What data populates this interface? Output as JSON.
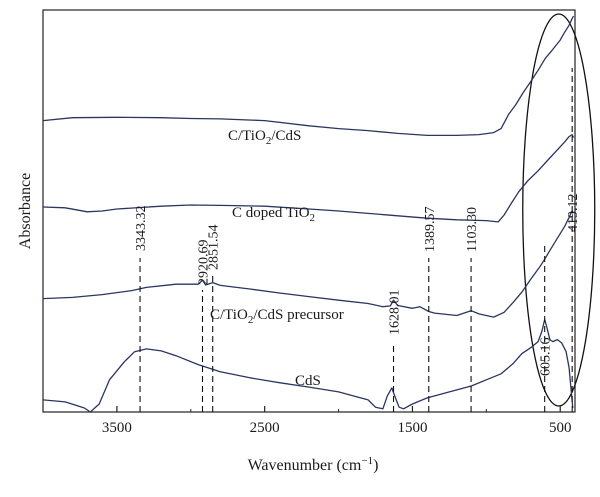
{
  "chart_data": {
    "type": "line",
    "xlabel": "Wavenumber",
    "xlabel_unit": "(cm",
    "xlabel_unit_sup": "−1",
    "xlabel_unit_close": ")",
    "ylabel": "Absorbance",
    "x_reversed": true,
    "xlim": [
      4000,
      400
    ],
    "xticks": [
      3500,
      2500,
      1500,
      500
    ],
    "xtick_labels": [
      "3500",
      "2500",
      "1500",
      "500"
    ],
    "y_ticks_shown": false,
    "line_color": "#2b3560",
    "series": [
      {
        "name": "C/TiO2/CdS",
        "label_main": "C/TiO",
        "label_sub": "2",
        "label_rest": "/CdS",
        "points": [
          [
            4000,
            0.725
          ],
          [
            3800,
            0.732
          ],
          [
            3500,
            0.733
          ],
          [
            3200,
            0.732
          ],
          [
            3000,
            0.73
          ],
          [
            2800,
            0.729
          ],
          [
            2500,
            0.725
          ],
          [
            2200,
            0.712
          ],
          [
            2000,
            0.705
          ],
          [
            1800,
            0.7
          ],
          [
            1600,
            0.693
          ],
          [
            1400,
            0.688
          ],
          [
            1200,
            0.688
          ],
          [
            1050,
            0.69
          ],
          [
            950,
            0.695
          ],
          [
            900,
            0.705
          ],
          [
            850,
            0.74
          ],
          [
            800,
            0.765
          ],
          [
            750,
            0.795
          ],
          [
            700,
            0.822
          ],
          [
            650,
            0.85
          ],
          [
            600,
            0.88
          ],
          [
            550,
            0.902
          ],
          [
            500,
            0.925
          ],
          [
            470,
            0.945
          ],
          [
            440,
            0.962
          ],
          [
            420,
            0.978
          ],
          [
            410,
            0.985
          ]
        ]
      },
      {
        "name": "C doped TiO2",
        "label_main": "C doped TiO",
        "label_sub": "2",
        "label_rest": "",
        "points": [
          [
            4000,
            0.51
          ],
          [
            3850,
            0.508
          ],
          [
            3700,
            0.498
          ],
          [
            3600,
            0.5
          ],
          [
            3500,
            0.505
          ],
          [
            3200,
            0.512
          ],
          [
            3000,
            0.515
          ],
          [
            2800,
            0.514
          ],
          [
            2500,
            0.512
          ],
          [
            2200,
            0.505
          ],
          [
            2000,
            0.5
          ],
          [
            1800,
            0.494
          ],
          [
            1600,
            0.488
          ],
          [
            1400,
            0.482
          ],
          [
            1200,
            0.478
          ],
          [
            1000,
            0.476
          ],
          [
            920,
            0.473
          ],
          [
            880,
            0.49
          ],
          [
            830,
            0.52
          ],
          [
            780,
            0.548
          ],
          [
            720,
            0.575
          ],
          [
            650,
            0.6
          ],
          [
            580,
            0.628
          ],
          [
            520,
            0.652
          ],
          [
            470,
            0.672
          ],
          [
            440,
            0.685
          ],
          [
            420,
            0.69
          ],
          [
            410,
            0.683
          ]
        ]
      },
      {
        "name": "C/TiO2/CdS precursor",
        "label_main": "C/TiO",
        "label_sub": "2",
        "label_rest": "/CdS precursor",
        "points": [
          [
            4000,
            0.282
          ],
          [
            3800,
            0.285
          ],
          [
            3600,
            0.292
          ],
          [
            3400,
            0.302
          ],
          [
            3300,
            0.31
          ],
          [
            3100,
            0.318
          ],
          [
            2950,
            0.318
          ],
          [
            2920,
            0.328
          ],
          [
            2900,
            0.316
          ],
          [
            2851,
            0.322
          ],
          [
            2800,
            0.315
          ],
          [
            2600,
            0.306
          ],
          [
            2400,
            0.296
          ],
          [
            2200,
            0.287
          ],
          [
            2000,
            0.278
          ],
          [
            1800,
            0.27
          ],
          [
            1700,
            0.262
          ],
          [
            1650,
            0.264
          ],
          [
            1628,
            0.278
          ],
          [
            1600,
            0.265
          ],
          [
            1500,
            0.258
          ],
          [
            1450,
            0.262
          ],
          [
            1389,
            0.25
          ],
          [
            1350,
            0.246
          ],
          [
            1200,
            0.24
          ],
          [
            1103,
            0.252
          ],
          [
            1050,
            0.244
          ],
          [
            950,
            0.236
          ],
          [
            880,
            0.248
          ],
          [
            820,
            0.272
          ],
          [
            760,
            0.298
          ],
          [
            700,
            0.33
          ],
          [
            640,
            0.36
          ],
          [
            605,
            0.38
          ],
          [
            570,
            0.402
          ],
          [
            520,
            0.432
          ],
          [
            470,
            0.462
          ],
          [
            440,
            0.484
          ],
          [
            420,
            0.5
          ],
          [
            410,
            0.495
          ]
        ]
      },
      {
        "name": "CdS",
        "label_main": "CdS",
        "label_sub": "",
        "label_rest": "",
        "points": [
          [
            4000,
            0.03
          ],
          [
            3850,
            0.025
          ],
          [
            3720,
            0.01
          ],
          [
            3680,
            0.0
          ],
          [
            3620,
            0.02
          ],
          [
            3550,
            0.08
          ],
          [
            3450,
            0.125
          ],
          [
            3380,
            0.15
          ],
          [
            3300,
            0.157
          ],
          [
            3200,
            0.152
          ],
          [
            3100,
            0.14
          ],
          [
            2950,
            0.118
          ],
          [
            2800,
            0.1
          ],
          [
            2600,
            0.085
          ],
          [
            2400,
            0.073
          ],
          [
            2200,
            0.062
          ],
          [
            2000,
            0.05
          ],
          [
            1900,
            0.04
          ],
          [
            1800,
            0.03
          ],
          [
            1750,
            0.012
          ],
          [
            1700,
            0.008
          ],
          [
            1670,
            0.04
          ],
          [
            1640,
            0.06
          ],
          [
            1620,
            0.04
          ],
          [
            1590,
            0.012
          ],
          [
            1560,
            0.008
          ],
          [
            1500,
            0.02
          ],
          [
            1400,
            0.035
          ],
          [
            1300,
            0.045
          ],
          [
            1200,
            0.055
          ],
          [
            1100,
            0.065
          ],
          [
            1000,
            0.08
          ],
          [
            900,
            0.095
          ],
          [
            820,
            0.12
          ],
          [
            760,
            0.145
          ],
          [
            700,
            0.16
          ],
          [
            650,
            0.175
          ],
          [
            625,
            0.2
          ],
          [
            605,
            0.23
          ],
          [
            590,
            0.21
          ],
          [
            570,
            0.18
          ],
          [
            550,
            0.175
          ],
          [
            520,
            0.18
          ],
          [
            490,
            0.172
          ],
          [
            460,
            0.15
          ],
          [
            440,
            0.11
          ],
          [
            425,
            0.05
          ],
          [
            415,
            0.01
          ]
        ]
      }
    ],
    "peaks": [
      {
        "label": "3343.32",
        "x": 3343.32
      },
      {
        "label": "2920.69",
        "x": 2920.69
      },
      {
        "label": "2851.54",
        "x": 2851.54
      },
      {
        "label": "1628.01",
        "x": 1628.01
      },
      {
        "label": "1389.57",
        "x": 1389.57
      },
      {
        "label": "1103.30",
        "x": 1103.3
      },
      {
        "label": "605.16",
        "x": 605.16
      },
      {
        "label": "419.12",
        "x": 419.12
      }
    ],
    "highlight_ellipse_center_x": 510
  }
}
